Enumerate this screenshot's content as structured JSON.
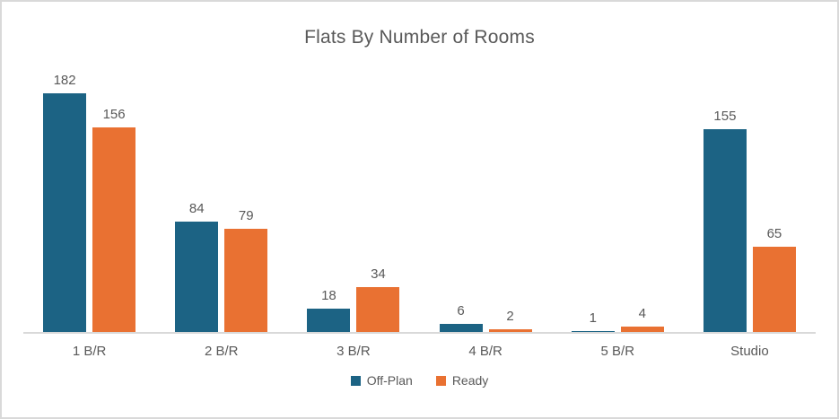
{
  "frame": {
    "background": "#FFFFFF",
    "border_color": "#D9D9D9"
  },
  "chart_data": {
    "type": "bar",
    "title": "Flats By Number of Rooms",
    "categories": [
      "1 B/R",
      "2 B/R",
      "3 B/R",
      "4 B/R",
      "5 B/R",
      "Studio"
    ],
    "series": [
      {
        "name": "Off-Plan",
        "color": "#1C6384",
        "values": [
          182,
          84,
          18,
          6,
          1,
          155
        ]
      },
      {
        "name": "Ready",
        "color": "#E97132",
        "values": [
          156,
          79,
          34,
          2,
          4,
          65
        ]
      }
    ],
    "ylim": [
      0,
      200
    ],
    "grid": false,
    "data_labels": true,
    "legend_position": "bottom",
    "axis_line_color": "#D9D9D9",
    "text_color": "#595959"
  }
}
